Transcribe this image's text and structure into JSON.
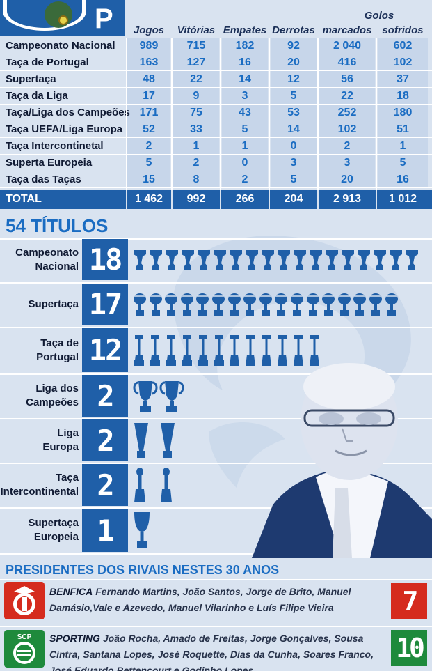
{
  "table": {
    "group_header": "Golos",
    "columns": [
      "Jogos",
      "Vitórias",
      "Empates",
      "Derrotas",
      "marcados",
      "sofridos"
    ],
    "rows": [
      {
        "label": "Campeonato Nacional",
        "values": [
          "989",
          "715",
          "182",
          "92",
          "2 040",
          "602"
        ]
      },
      {
        "label": "Taça de Portugal",
        "values": [
          "163",
          "127",
          "16",
          "20",
          "416",
          "102"
        ]
      },
      {
        "label": "Supertaça",
        "values": [
          "48",
          "22",
          "14",
          "12",
          "56",
          "37"
        ]
      },
      {
        "label": "Taça da Liga",
        "values": [
          "17",
          "9",
          "3",
          "5",
          "22",
          "18"
        ]
      },
      {
        "label": "Taça/Liga dos Campeões",
        "values": [
          "171",
          "75",
          "43",
          "53",
          "252",
          "180"
        ]
      },
      {
        "label": "Taça UEFA/Liga Europa",
        "values": [
          "52",
          "33",
          "5",
          "14",
          "102",
          "51"
        ]
      },
      {
        "label": "Taça Intercontinetal",
        "values": [
          "2",
          "1",
          "1",
          "0",
          "2",
          "1"
        ]
      },
      {
        "label": "Superta Europeia",
        "values": [
          "5",
          "2",
          "0",
          "3",
          "3",
          "5"
        ]
      },
      {
        "label": "Taça das Taças",
        "values": [
          "15",
          "8",
          "2",
          "5",
          "20",
          "16"
        ]
      }
    ],
    "total": {
      "label": "TOTAL",
      "values": [
        "1 462",
        "992",
        "266",
        "204",
        "2 913",
        "1 012"
      ]
    }
  },
  "titles": {
    "heading": "54 TÍTULOS",
    "rows": [
      {
        "label_lines": [
          "Campeonato",
          "Nacional"
        ],
        "count": "18",
        "trophy": "cup-trophy-icon"
      },
      {
        "label_lines": [
          "Supertaça"
        ],
        "count": "17",
        "trophy": "supercup-trophy-icon"
      },
      {
        "label_lines": [
          "Taça de",
          "Portugal"
        ],
        "count": "12",
        "trophy": "tall-cup-trophy-icon"
      },
      {
        "label_lines": [
          "Liga dos",
          "Campeões"
        ],
        "count": "2",
        "trophy": "big-ears-trophy-icon"
      },
      {
        "label_lines": [
          "Liga",
          "Europa"
        ],
        "count": "2",
        "trophy": "uefa-trophy-icon"
      },
      {
        "label_lines": [
          "Taça",
          "Intercontinental"
        ],
        "count": "2",
        "trophy": "intercontinental-trophy-icon"
      },
      {
        "label_lines": [
          "Supertaça",
          "Europeia"
        ],
        "count": "1",
        "trophy": "supercup-europe-trophy-icon"
      }
    ]
  },
  "rivals": {
    "heading": "PRESIDENTES DOS RIVAIS NESTES 30 ANOS",
    "items": [
      {
        "club": "BENFICA",
        "presidents": "Fernando Martins, João Santos, Jorge de Brito, Manuel Damásio,Vale e Azevedo, Manuel Vilarinho e Luís Filipe Vieira",
        "count": "7",
        "color": "#d52b1e",
        "logo": "benfica-crest-icon"
      },
      {
        "club": "SPORTING",
        "presidents": "João Rocha, Amado de Freitas, Jorge Gonçalves, Sousa Cintra, Santana Lopes, José Roquette, Dias da Cunha, Soares Franco, José Eduardo Bettencourt e Godinho Lopes",
        "count": "10",
        "color": "#1e8a3c",
        "logo": "sporting-crest-icon",
        "logo_text": "SCP"
      }
    ]
  },
  "colors": {
    "accent": "#1f5fa8",
    "number": "#1a6cc2",
    "benfica": "#d52b1e",
    "sporting": "#1e8a3c",
    "background": "#d9e3f0"
  }
}
